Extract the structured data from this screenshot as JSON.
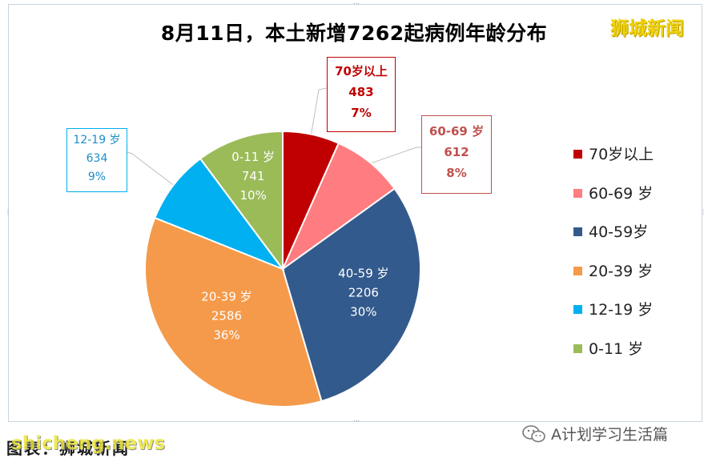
{
  "brand": "狮城新闻",
  "source_label": "图表：狮城新闻",
  "source_watermark": "shicheng.news",
  "wechat_account": "A计划学习生活篇",
  "chart_data": {
    "type": "pie",
    "title": "8月11日，本土新增7262起病例年龄分布",
    "total": 7262,
    "slices": [
      {
        "label": "70岁以上",
        "legend": "70岁以上",
        "value": 483,
        "percent": "7%",
        "color": "#c00000",
        "label_color": "#c00000"
      },
      {
        "label": "60-69 岁",
        "legend": "60-69 岁",
        "value": 612,
        "percent": "8%",
        "color": "#ff7c80",
        "label_color": "#c0504d"
      },
      {
        "label": "40-59 岁",
        "legend": "40-59岁",
        "value": 2206,
        "percent": "30%",
        "color": "#335a8c",
        "label_color": "#ffffff"
      },
      {
        "label": "20-39 岁",
        "legend": "20-39 岁",
        "value": 2586,
        "percent": "36%",
        "color": "#f59a4a",
        "label_color": "#ffffff"
      },
      {
        "label": "12-19 岁",
        "legend": "12-19 岁",
        "value": 634,
        "percent": "9%",
        "color": "#00b0f0",
        "label_color": "#1a8fc9"
      },
      {
        "label": "0-11 岁",
        "legend": "0-11 岁",
        "value": 741,
        "percent": "10%",
        "color": "#9bbb59",
        "label_color": "#ffffff"
      }
    ],
    "legend_position": "right"
  }
}
